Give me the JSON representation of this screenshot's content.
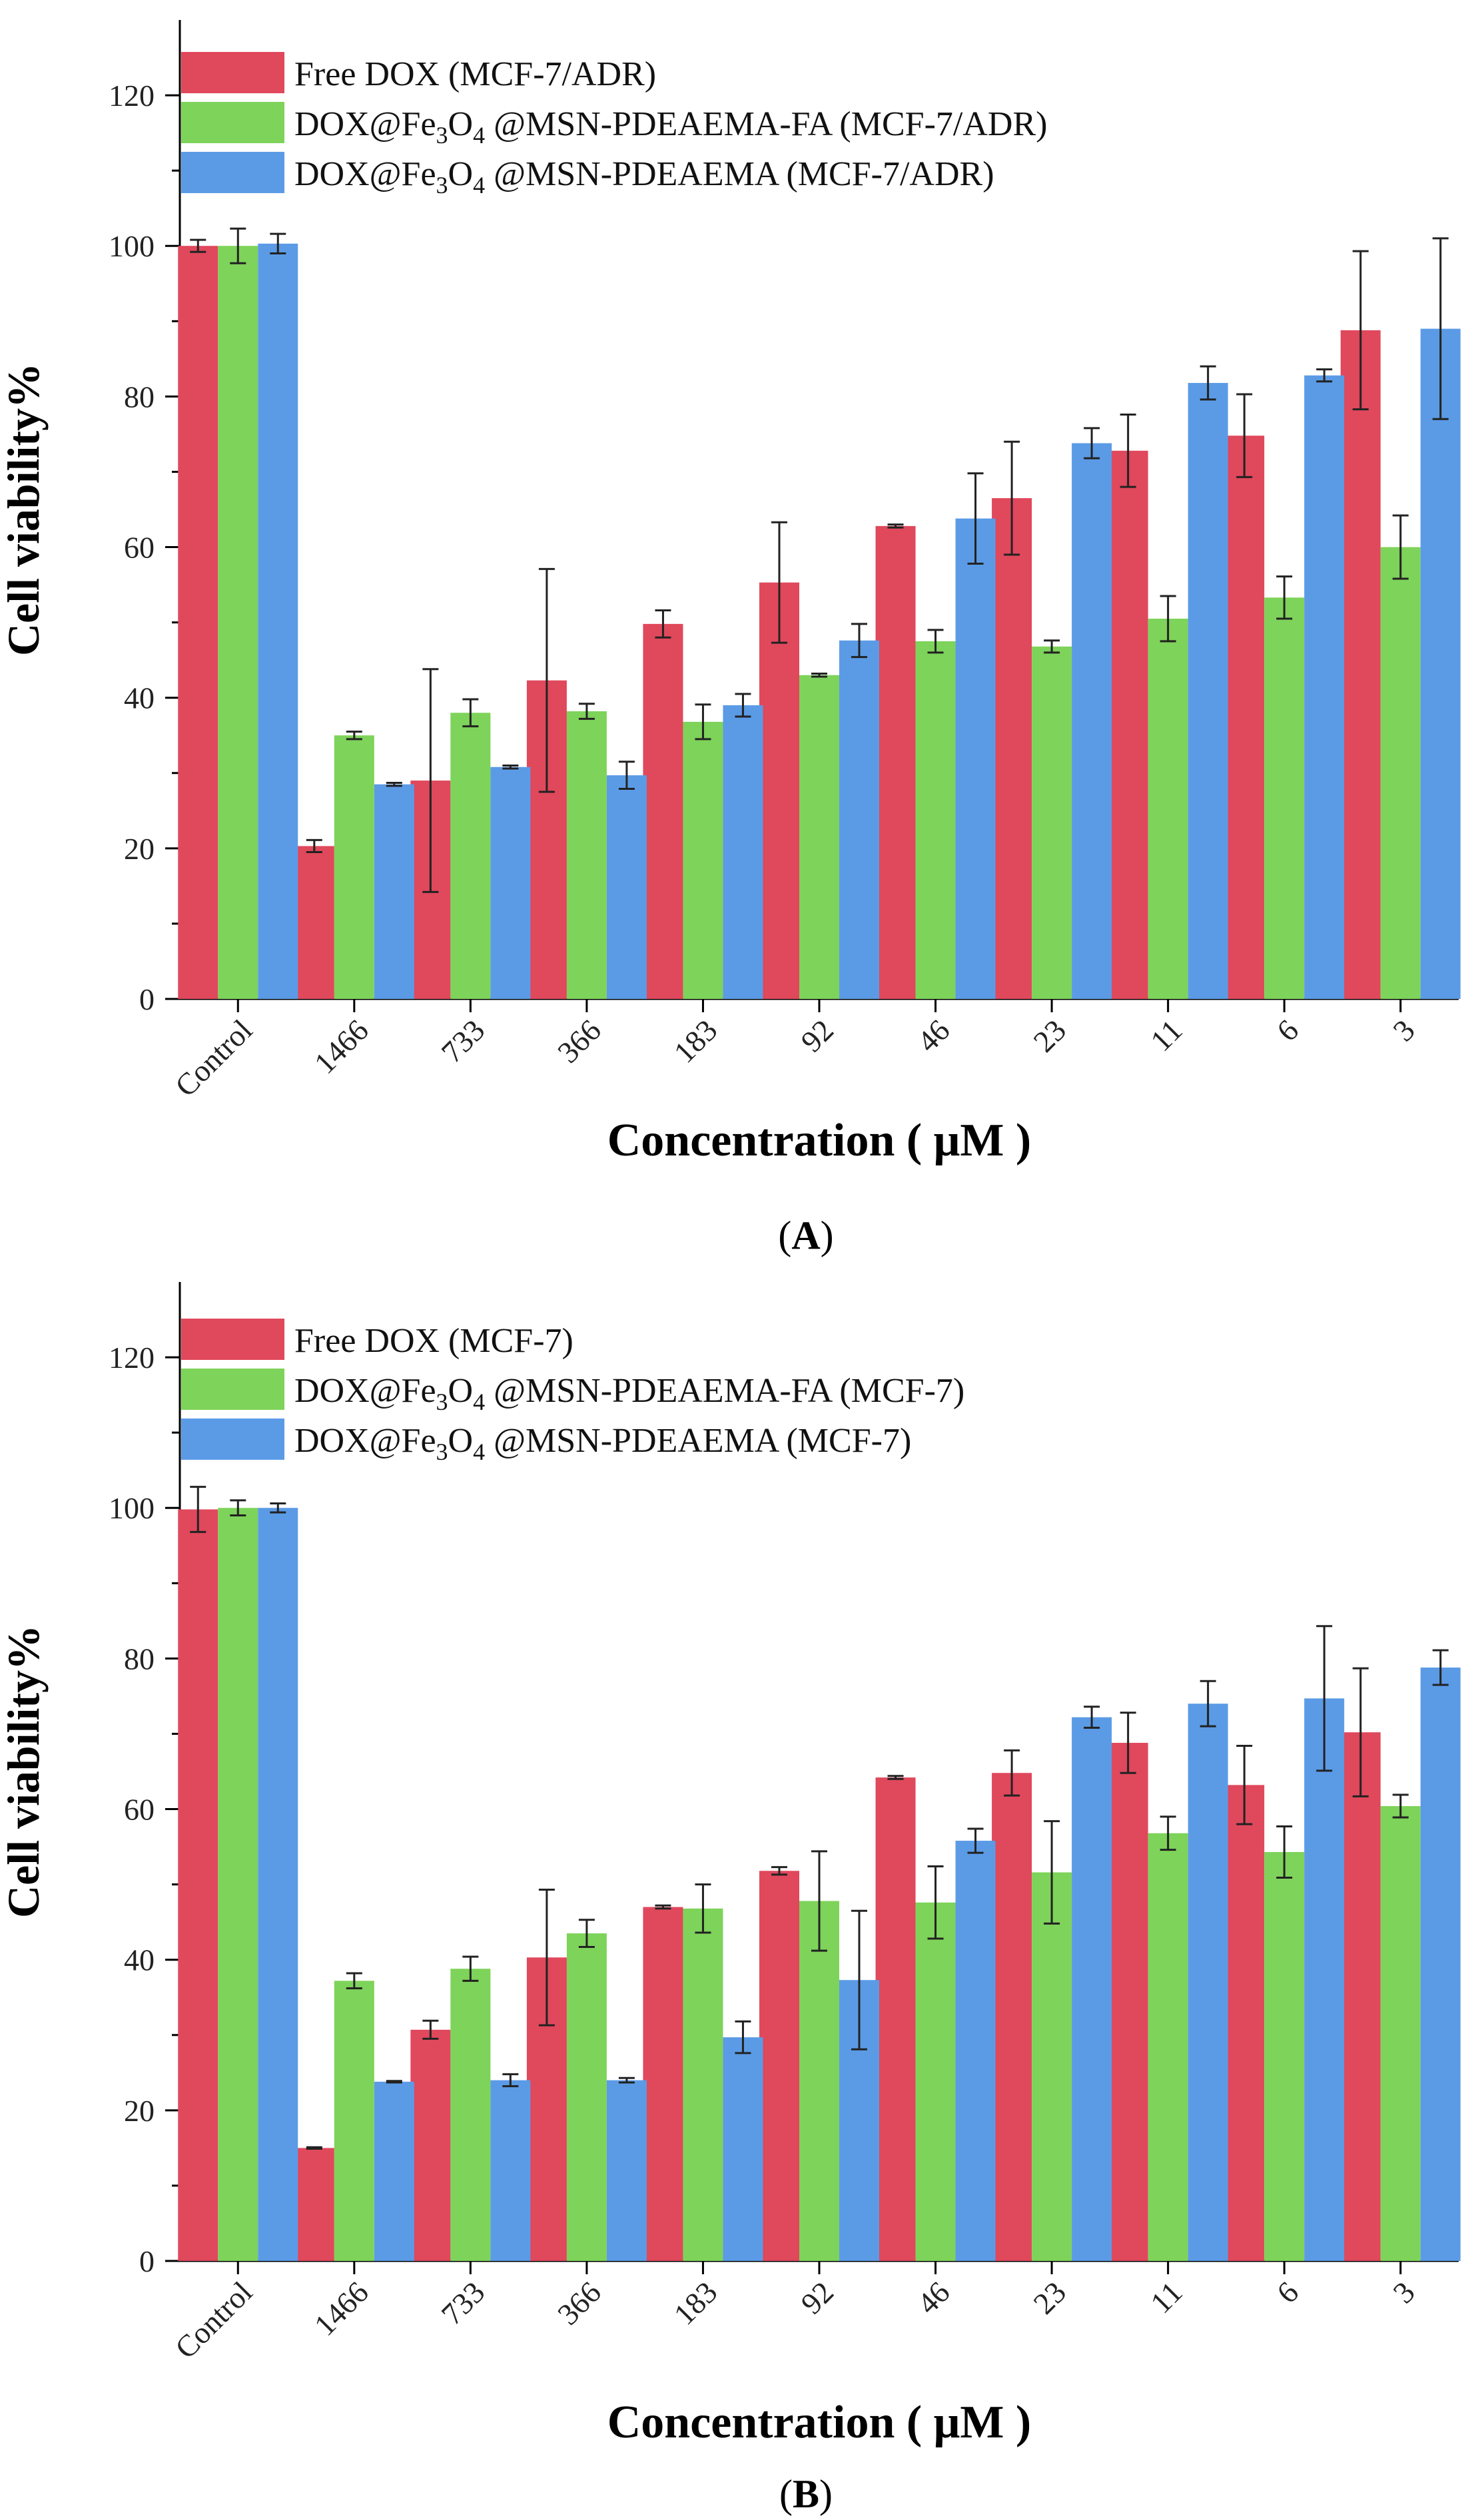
{
  "chart_data": [
    {
      "type": "bar",
      "panel_label": "A",
      "categories": [
        "Control",
        "1466",
        "733",
        "366",
        "183",
        "92",
        "46",
        "23",
        "11",
        "6",
        "3"
      ],
      "xlabel": "Concentration ( μM )",
      "ylabel": "Cell viability%",
      "ylim": [
        0,
        130
      ],
      "yticks": [
        0,
        20,
        40,
        60,
        80,
        100,
        120
      ],
      "legend_position": "top-left",
      "series": [
        {
          "name": "Free DOX (MCF-7/ADR)",
          "legend": {
            "pre": "Free DOX (MCF-7/ADR)",
            "sub1": "",
            "mid": "",
            "sub2": "",
            "post": ""
          },
          "color": "#e0485c",
          "values": [
            100,
            20.3,
            29,
            42.3,
            49.8,
            55.3,
            62.8,
            66.5,
            72.8,
            74.8,
            88.8
          ],
          "errors": [
            0.8,
            0.8,
            14.8,
            14.8,
            1.8,
            8,
            0.2,
            7.5,
            4.8,
            5.5,
            10.5
          ]
        },
        {
          "name": "DOX@Fe3O4 @MSN-PDEAEMA-FA (MCF-7/ADR)",
          "legend": {
            "pre": "DOX@Fe",
            "sub1": "3",
            "mid": "O",
            "sub2": "4",
            "post": " @MSN-PDEAEMA-FA (MCF-7/ADR)"
          },
          "color": "#7ed35a",
          "values": [
            100,
            35,
            38,
            38.2,
            36.8,
            43,
            47.5,
            46.8,
            50.5,
            53.3,
            60
          ],
          "errors": [
            2.3,
            0.5,
            1.8,
            1,
            2.3,
            0.2,
            1.5,
            0.8,
            3,
            2.8,
            4.2
          ]
        },
        {
          "name": "DOX@Fe3O4 @MSN-PDEAEMA (MCF-7/ADR)",
          "legend": {
            "pre": "DOX@Fe",
            "sub1": "3",
            "mid": "O",
            "sub2": "4",
            "post": " @MSN-PDEAEMA (MCF-7/ADR)"
          },
          "color": "#5b9be6",
          "values": [
            100.3,
            28.5,
            30.8,
            29.7,
            39,
            47.6,
            63.8,
            73.8,
            81.8,
            82.8,
            89
          ],
          "errors": [
            1.3,
            0.2,
            0.2,
            1.8,
            1.5,
            2.2,
            6,
            2,
            2.2,
            0.8,
            12
          ]
        }
      ]
    },
    {
      "type": "bar",
      "panel_label": "B",
      "categories": [
        "Control",
        "1466",
        "733",
        "366",
        "183",
        "92",
        "46",
        "23",
        "11",
        "6",
        "3"
      ],
      "xlabel": "Concentration ( μM )",
      "ylabel": "Cell viability%",
      "ylim": [
        0,
        130
      ],
      "yticks": [
        0,
        20,
        40,
        60,
        80,
        100,
        120
      ],
      "legend_position": "top-left",
      "series": [
        {
          "name": "Free DOX (MCF-7)",
          "legend": {
            "pre": "Free DOX (MCF-7)",
            "sub1": "",
            "mid": "",
            "sub2": "",
            "post": ""
          },
          "color": "#e0485c",
          "values": [
            99.8,
            15,
            30.7,
            40.3,
            47,
            51.8,
            64.2,
            64.8,
            68.8,
            63.2,
            70.2
          ],
          "errors": [
            3,
            0.1,
            1.2,
            9,
            0.2,
            0.5,
            0.2,
            3,
            4,
            5.2,
            8.5
          ]
        },
        {
          "name": "DOX@Fe3O4 @MSN-PDEAEMA-FA (MCF-7)",
          "legend": {
            "pre": "DOX@Fe",
            "sub1": "3",
            "mid": "O",
            "sub2": "4",
            "post": " @MSN-PDEAEMA-FA (MCF-7)"
          },
          "color": "#7ed35a",
          "values": [
            100,
            37.2,
            38.8,
            43.5,
            46.8,
            47.8,
            47.6,
            51.6,
            56.8,
            54.3,
            60.4
          ],
          "errors": [
            1,
            1,
            1.6,
            1.8,
            3.2,
            6.6,
            4.8,
            6.8,
            2.2,
            3.4,
            1.5
          ]
        },
        {
          "name": "DOX@Fe3O4 @MSN-PDEAEMA (MCF-7)",
          "legend": {
            "pre": "DOX@Fe",
            "sub1": "3",
            "mid": "O",
            "sub2": "4",
            "post": " @MSN-PDEAEMA (MCF-7)"
          },
          "color": "#5b9be6",
          "values": [
            100,
            23.8,
            24,
            24,
            29.7,
            37.3,
            55.8,
            72.2,
            74,
            74.7,
            78.8
          ],
          "errors": [
            0.6,
            0.1,
            0.8,
            0.3,
            2.1,
            9.2,
            1.6,
            1.4,
            3,
            9.6,
            2.3
          ]
        }
      ]
    }
  ]
}
